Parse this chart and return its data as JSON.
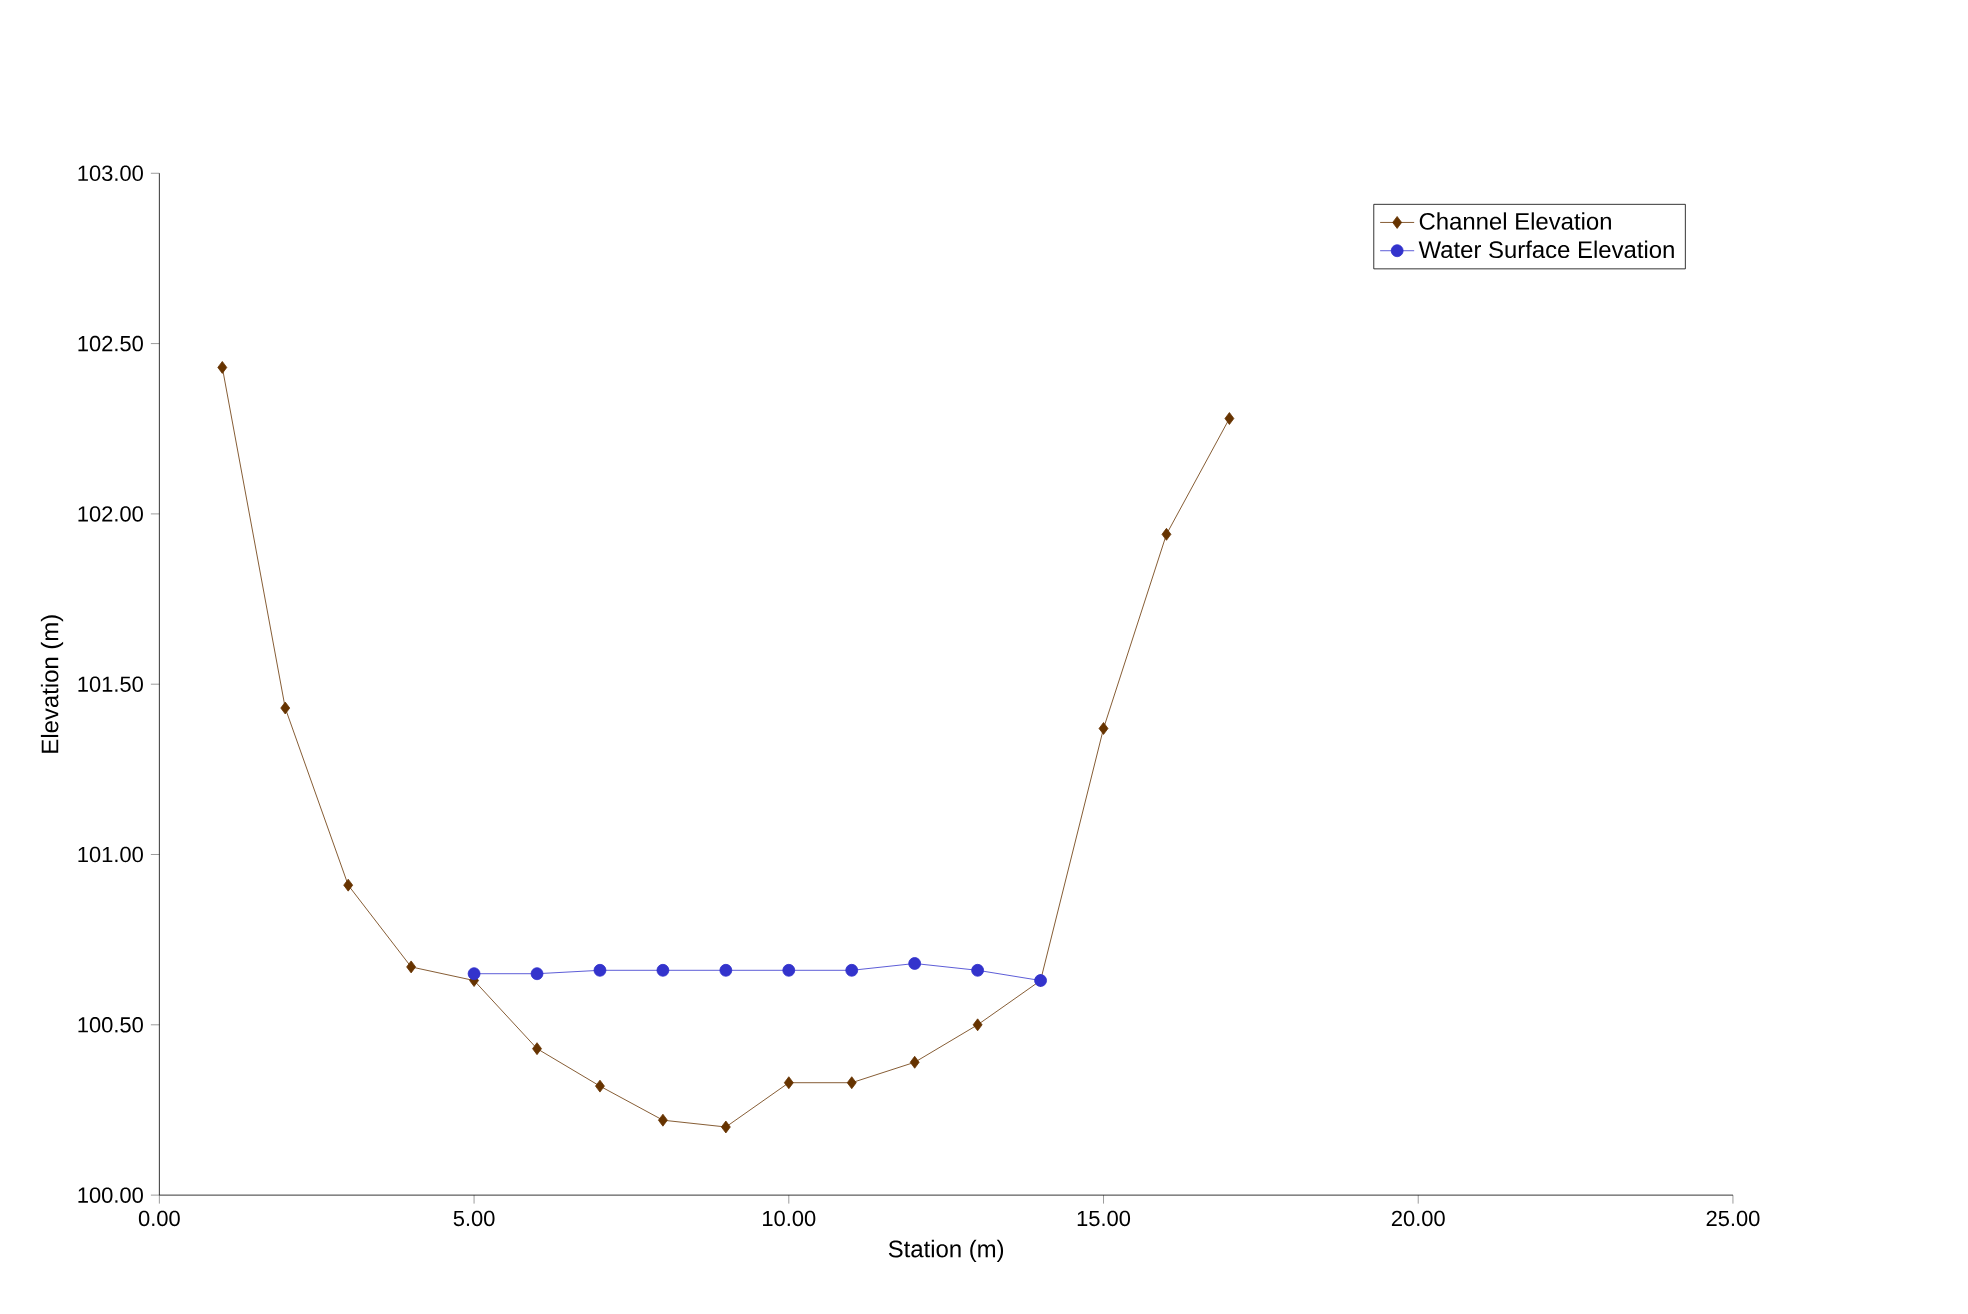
{
  "chart_data": {
    "type": "line",
    "xlabel": "Station (m)",
    "ylabel": "Elevation (m)",
    "xlim": [
      0,
      25
    ],
    "ylim": [
      100,
      103
    ],
    "xticks": [
      {
        "value": 0,
        "label": "0.00"
      },
      {
        "value": 5,
        "label": "5.00"
      },
      {
        "value": 10,
        "label": "10.00"
      },
      {
        "value": 15,
        "label": "15.00"
      },
      {
        "value": 20,
        "label": "20.00"
      },
      {
        "value": 25,
        "label": "25.00"
      }
    ],
    "yticks": [
      {
        "value": 100,
        "label": "100.00"
      },
      {
        "value": 100.5,
        "label": "100.50"
      },
      {
        "value": 101,
        "label": "101.00"
      },
      {
        "value": 101.5,
        "label": "101.50"
      },
      {
        "value": 102,
        "label": "102.00"
      },
      {
        "value": 102.5,
        "label": "102.50"
      },
      {
        "value": 103,
        "label": "103.00"
      }
    ],
    "legend": "top right",
    "grid": false,
    "line_style": "solid",
    "series": [
      {
        "name": "Channel Elevation",
        "color": "#663300",
        "marker": "diamond",
        "x": [
          1,
          2,
          3,
          4,
          5,
          6,
          7,
          8,
          9,
          10,
          11,
          12,
          13,
          14,
          15,
          16,
          17
        ],
        "values": [
          102.43,
          101.43,
          100.91,
          100.67,
          100.63,
          100.43,
          100.32,
          100.22,
          100.2,
          100.33,
          100.33,
          100.39,
          100.5,
          100.63,
          101.37,
          101.94,
          102.28
        ]
      },
      {
        "name": "Water Surface Elevation",
        "color": "#3333cc",
        "marker": "circle",
        "x": [
          5,
          6,
          7,
          8,
          9,
          10,
          11,
          12,
          13,
          14
        ],
        "values": [
          100.65,
          100.65,
          100.66,
          100.66,
          100.66,
          100.66,
          100.66,
          100.68,
          100.66,
          100.63
        ]
      }
    ]
  }
}
